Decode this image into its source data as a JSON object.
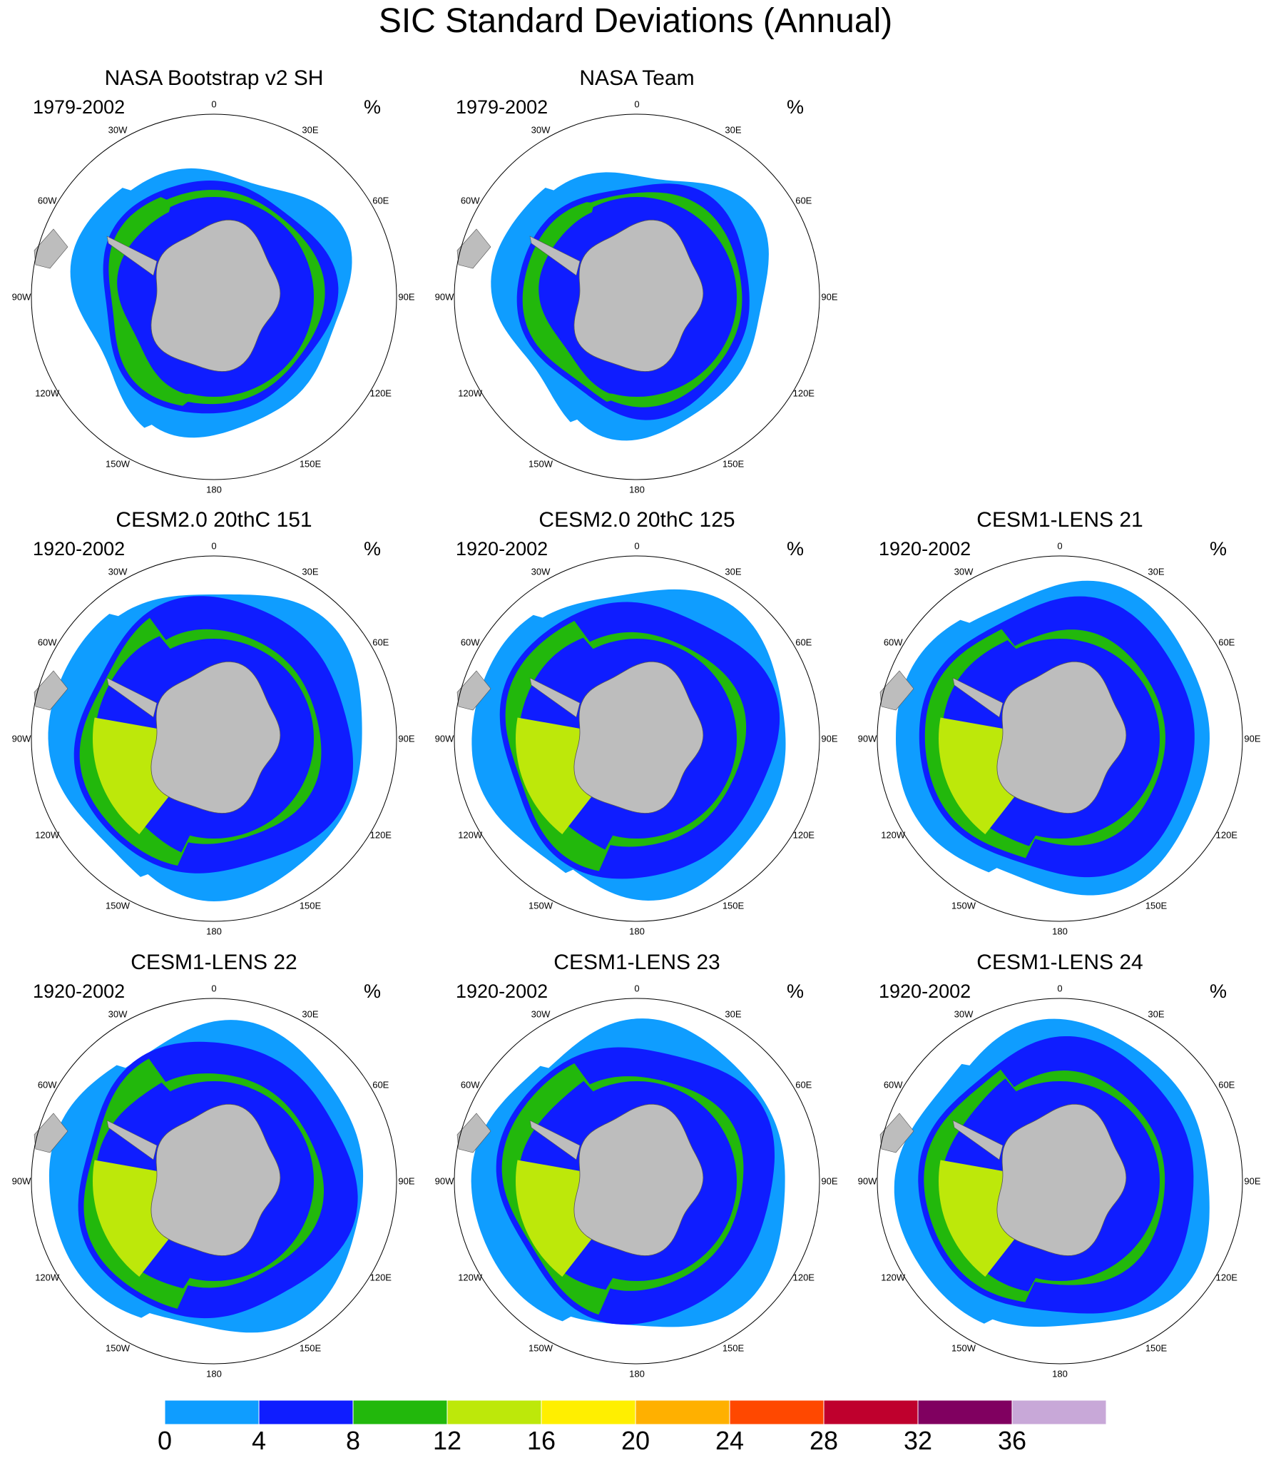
{
  "title": "SIC Standard Deviations (Annual)",
  "units": "%",
  "colorbar": {
    "labels": [
      "0",
      "4",
      "8",
      "12",
      "16",
      "20",
      "24",
      "28",
      "32",
      "36"
    ],
    "colors": [
      "#0f9dff",
      "#0f1dff",
      "#22b80c",
      "#bde80a",
      "#ffef00",
      "#ffb000",
      "#ff4800",
      "#bf002d",
      "#800060",
      "#c8a8d8"
    ]
  },
  "chart_data": {
    "type": "heatmap",
    "projection": "south-polar-stereographic",
    "value_name": "SIC standard deviation",
    "units": "%",
    "levels": [
      0,
      4,
      8,
      12,
      16,
      20,
      24,
      28,
      32,
      36
    ],
    "panels": [
      {
        "title": "NASA Bootstrap v2 SH",
        "period": "1979-2002"
      },
      {
        "title": "NASA Team",
        "period": "1979-2002"
      },
      {
        "title": "CESM2.0 20thC 151",
        "period": "1920-2002"
      },
      {
        "title": "CESM2.0 20thC 125",
        "period": "1920-2002"
      },
      {
        "title": "CESM1-LENS 21",
        "period": "1920-2002"
      },
      {
        "title": "CESM1-LENS 22",
        "period": "1920-2002"
      },
      {
        "title": "CESM1-LENS 23",
        "period": "1920-2002"
      },
      {
        "title": "CESM1-LENS 24",
        "period": "1920-2002"
      }
    ]
  },
  "grid_labels": [
    "0",
    "30E",
    "60E",
    "90E",
    "120E",
    "150E",
    "180",
    "150W",
    "120W",
    "90W",
    "60W",
    "30W"
  ]
}
